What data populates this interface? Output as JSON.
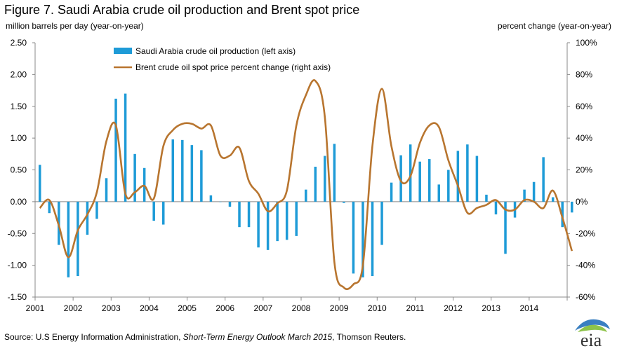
{
  "header": {
    "title": "Figure 7. Saudi Arabia crude oil production and Brent spot price",
    "left_unit": "million barrels  per day (year-on-year)",
    "right_unit": "percent  change  (year-on-year)"
  },
  "footer": {
    "source_prefix": "Source:  U.S Energy  Information  Administration, ",
    "source_italic": "Short-Term Energy Outlook March 2015",
    "source_suffix": ", Thomson Reuters.",
    "logo_text": "eia"
  },
  "colors": {
    "bars": "#1e9bd7",
    "line": "#b8752f",
    "axis": "#888888",
    "logo_blue": "#3a7fc1",
    "logo_green": "#8ec34a"
  },
  "chart_data": {
    "type": "bar+line",
    "x_start": "2001-01",
    "x_end": "2014-12",
    "x_interval": "quarterly",
    "x_ticks": [
      "2001",
      "2002",
      "2003",
      "2004",
      "2005",
      "2006",
      "2007",
      "2008",
      "2009",
      "2010",
      "2011",
      "2012",
      "2013",
      "2014"
    ],
    "left_axis": {
      "ylim": [
        -1.5,
        2.5
      ],
      "ticks": [
        "2.50",
        "2.00",
        "1.50",
        "1.00",
        "0.50",
        "0.00",
        "-0.50",
        "-1.00",
        "-1.50"
      ]
    },
    "right_axis": {
      "ylim": [
        -60,
        100
      ],
      "ticks": [
        "100%",
        "80%",
        "60%",
        "40%",
        "20%",
        "0%",
        "-20%",
        "-40%",
        "-60%"
      ]
    },
    "legend_position": "top-center",
    "series": [
      {
        "name": "Saudi Arabia crude oil production (left axis)",
        "axis": "left",
        "values": [
          0.58,
          -0.18,
          -0.68,
          -1.19,
          -1.17,
          -0.52,
          -0.27,
          0.37,
          1.62,
          1.7,
          0.75,
          0.53,
          -0.3,
          -0.36,
          0.98,
          0.97,
          0.89,
          0.81,
          0.1,
          0.0,
          -0.08,
          -0.4,
          -0.4,
          -0.72,
          -0.76,
          -0.62,
          -0.6,
          -0.54,
          0.19,
          0.55,
          0.72,
          0.91,
          -0.02,
          -1.13,
          -1.19,
          -1.17,
          -0.68,
          0.3,
          0.73,
          0.9,
          0.63,
          0.67,
          0.27,
          0.5,
          0.8,
          0.9,
          0.72,
          0.11,
          -0.2,
          -0.82,
          -0.25,
          0.19,
          0.31,
          0.7,
          0.07,
          -0.4,
          -0.17
        ]
      },
      {
        "name": "Brent crude oil spot price percent change (right axis)",
        "axis": "right",
        "values": [
          -4,
          1,
          -15,
          -35,
          -18,
          -8,
          6,
          38,
          48,
          5,
          6,
          10,
          2,
          35,
          45,
          49,
          49,
          46,
          48,
          29,
          29,
          34,
          13,
          5,
          -6,
          -1,
          7,
          48,
          67,
          76,
          53,
          -38,
          -54,
          -52,
          -40,
          35,
          71,
          35,
          13,
          16,
          37,
          48,
          47,
          26,
          10,
          -7,
          -4,
          -2,
          1,
          -5,
          -5,
          1,
          0,
          -4,
          7,
          -10,
          -31
        ]
      }
    ]
  }
}
